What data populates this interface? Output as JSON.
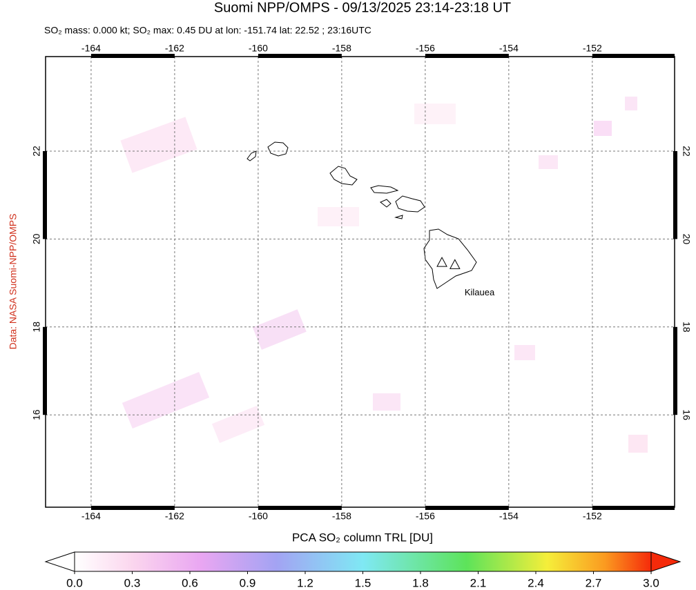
{
  "map": {
    "title": "Suomi NPP/OMPS - 09/13/2025 23:14-23:18 UT",
    "subtitle": "SO₂ mass: 0.000 kt; SO₂ max: 0.45 DU at lon: -151.74 lat: 22.52 ; 23:16UTC",
    "credit": "Data: NASA Suomi-NPP/OMPS",
    "lon_range": [
      -165.09,
      -150.03
    ],
    "lat_range": [
      13.9,
      24.15
    ],
    "lon_ticks": [
      -164,
      -162,
      -160,
      -158,
      -156,
      -154,
      -152
    ],
    "lat_ticks": [
      16,
      18,
      20,
      22
    ],
    "volcanoes": [
      {
        "lon": -155.6,
        "lat": 19.47
      },
      {
        "name": "Kilauea",
        "lon": -155.29,
        "lat": 19.42
      }
    ],
    "colorbar": {
      "label": "PCA SO₂ column TRL [DU]",
      "range": [
        0,
        3
      ],
      "ticks": [
        {
          "value": 0,
          "label": "0.0"
        },
        {
          "value": 0.3,
          "label": "0.3"
        },
        {
          "value": 0.6,
          "label": "0.6"
        },
        {
          "value": 0.9,
          "label": "0.9"
        },
        {
          "value": 1.2,
          "label": "1.2"
        },
        {
          "value": 1.5,
          "label": "1.5"
        },
        {
          "value": 1.8,
          "label": "1.8"
        },
        {
          "value": 2.1,
          "label": "2.1"
        },
        {
          "value": 2.4,
          "label": "2.4"
        },
        {
          "value": 2.7,
          "label": "2.7"
        },
        {
          "value": 3,
          "label": "3.0"
        }
      ]
    }
  }
}
